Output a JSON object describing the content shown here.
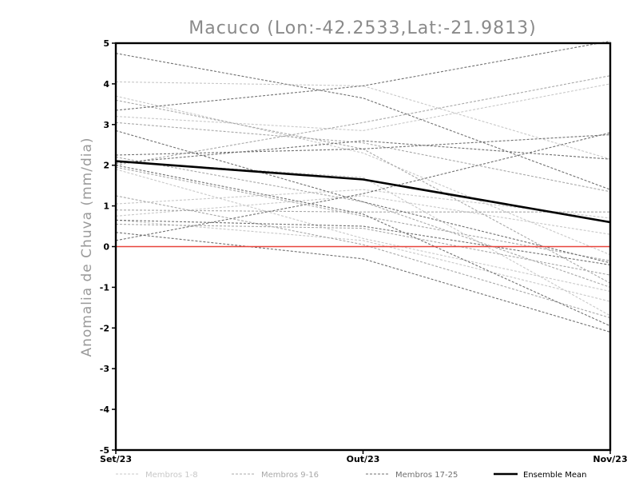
{
  "chart_data": {
    "type": "line",
    "title": "Macuco (Lon:-42.2533,Lat:-21.9813)",
    "ylabel": "Anomalia de Chuva (mm/dia)",
    "xlabel": "",
    "categories": [
      "Set/23",
      "Out/23",
      "Nov/23"
    ],
    "ylim": [
      -5,
      5
    ],
    "yticks": [
      "5",
      "4",
      "3",
      "2",
      "1",
      "0",
      "-1",
      "-2",
      "-3",
      "-4",
      "-5"
    ],
    "zero_line_color": "#e8433b",
    "legend": [
      {
        "label": "Membros 1-8",
        "color": "#c8c8c8",
        "dashed": true
      },
      {
        "label": "Membros 9-16",
        "color": "#a8a8a8",
        "dashed": true
      },
      {
        "label": "Membros 17-25",
        "color": "#707070",
        "dashed": true
      },
      {
        "label": "Ensemble Mean",
        "color": "#000000",
        "dashed": false
      }
    ],
    "series": [
      {
        "name": "m1",
        "group": 0,
        "values": [
          4.05,
          3.95,
          2.15
        ]
      },
      {
        "name": "m2",
        "group": 0,
        "values": [
          3.7,
          2.3,
          -0.2
        ]
      },
      {
        "name": "m3",
        "group": 0,
        "values": [
          3.2,
          2.85,
          4.0
        ]
      },
      {
        "name": "m4",
        "group": 0,
        "values": [
          2.1,
          1.7,
          -1.7
        ]
      },
      {
        "name": "m5",
        "group": 0,
        "values": [
          1.9,
          0.2,
          -1.1
        ]
      },
      {
        "name": "m6",
        "group": 0,
        "values": [
          0.75,
          1.25,
          0.3
        ]
      },
      {
        "name": "m7",
        "group": 0,
        "values": [
          0.65,
          0.15,
          -1.35
        ]
      },
      {
        "name": "m8",
        "group": 0,
        "values": [
          1.05,
          1.4,
          0.7
        ]
      },
      {
        "name": "m9",
        "group": 1,
        "values": [
          3.6,
          2.4,
          -0.9
        ]
      },
      {
        "name": "m10",
        "group": 1,
        "values": [
          3.05,
          2.55,
          1.35
        ]
      },
      {
        "name": "m11",
        "group": 1,
        "values": [
          2.0,
          3.05,
          4.2
        ]
      },
      {
        "name": "m12",
        "group": 1,
        "values": [
          2.2,
          1.1,
          -1.0
        ]
      },
      {
        "name": "m13",
        "group": 1,
        "values": [
          1.95,
          0.75,
          -0.35
        ]
      },
      {
        "name": "m14",
        "group": 1,
        "values": [
          0.9,
          0.85,
          0.85
        ]
      },
      {
        "name": "m15",
        "group": 1,
        "values": [
          0.55,
          0.45,
          -0.7
        ]
      },
      {
        "name": "m16",
        "group": 1,
        "values": [
          1.25,
          0.05,
          -1.75
        ]
      },
      {
        "name": "m17",
        "group": 2,
        "values": [
          4.75,
          3.65,
          1.4
        ]
      },
      {
        "name": "m18",
        "group": 2,
        "values": [
          3.35,
          3.95,
          5.05
        ]
      },
      {
        "name": "m19",
        "group": 2,
        "values": [
          2.85,
          1.1,
          -0.4
        ]
      },
      {
        "name": "m20",
        "group": 2,
        "values": [
          2.25,
          2.4,
          2.75
        ]
      },
      {
        "name": "m21",
        "group": 2,
        "values": [
          2.05,
          2.6,
          2.15
        ]
      },
      {
        "name": "m22",
        "group": 2,
        "values": [
          2.0,
          0.8,
          -1.95
        ]
      },
      {
        "name": "m23",
        "group": 2,
        "values": [
          0.65,
          0.5,
          -0.45
        ]
      },
      {
        "name": "m24",
        "group": 2,
        "values": [
          0.15,
          1.3,
          2.8
        ]
      },
      {
        "name": "m25",
        "group": 2,
        "values": [
          0.35,
          -0.3,
          -2.1
        ]
      }
    ],
    "ensemble_mean": {
      "name": "Ensemble Mean",
      "values": [
        2.1,
        1.65,
        0.6
      ]
    }
  }
}
